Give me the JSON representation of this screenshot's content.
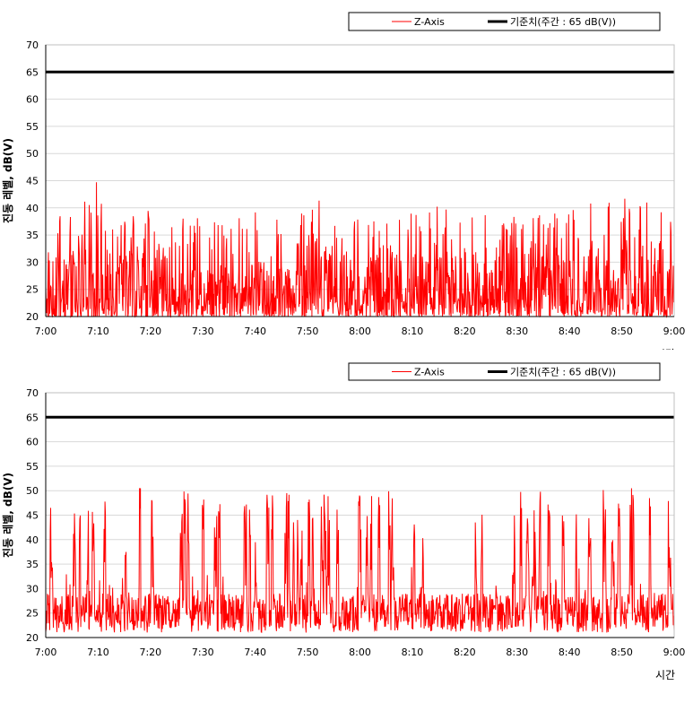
{
  "colors": {
    "series": "#ff0000",
    "threshold": "#000000",
    "grid": "#d9d9d9",
    "axis": "#000000"
  },
  "chart_data": [
    {
      "type": "line",
      "xlabel": "시간",
      "ylabel": "진동 레벨, dB(V)",
      "ylim": [
        20,
        70
      ],
      "yticks": [
        20,
        25,
        30,
        35,
        40,
        45,
        50,
        55,
        60,
        65,
        70
      ],
      "xticks": [
        "7:00",
        "7:10",
        "7:20",
        "7:30",
        "7:40",
        "7:50",
        "8:00",
        "8:10",
        "8:20",
        "8:30",
        "8:40",
        "8:50",
        "9:00"
      ],
      "grid": true,
      "legend_position": "top-right",
      "series": [
        {
          "name": "Z-Axis",
          "color": "#ff0000",
          "x": [
            "7:00",
            "7:05",
            "7:10",
            "7:15",
            "7:20",
            "7:25",
            "7:30",
            "7:35",
            "7:40",
            "7:45",
            "7:50",
            "7:55",
            "8:00",
            "8:05",
            "8:10",
            "8:15",
            "8:20",
            "8:25",
            "8:30",
            "8:35",
            "8:40",
            "8:45",
            "8:50",
            "8:55",
            "9:00"
          ],
          "y": [
            37,
            41,
            45,
            38,
            40,
            39,
            39,
            37,
            40,
            39,
            45,
            42,
            38,
            39,
            39,
            41,
            40,
            39,
            40,
            39,
            39,
            44,
            42,
            41,
            42
          ]
        },
        {
          "name": "기준치(주간 : 65 dB(V))",
          "color": "#000000",
          "x": [
            "7:00",
            "9:00"
          ],
          "y": [
            65,
            65
          ]
        }
      ]
    },
    {
      "type": "line",
      "xlabel": "시간",
      "ylabel": "진동 레벨, dB(V)",
      "ylim": [
        20,
        70
      ],
      "yticks": [
        20,
        25,
        30,
        35,
        40,
        45,
        50,
        55,
        60,
        65,
        70
      ],
      "xticks": [
        "7:00",
        "7:10",
        "7:20",
        "7:30",
        "7:40",
        "7:50",
        "8:00",
        "8:10",
        "8:20",
        "8:30",
        "8:40",
        "8:50",
        "9:00"
      ],
      "grid": true,
      "legend_position": "top-right",
      "series": [
        {
          "name": "Z-Axis",
          "color": "#ff0000",
          "x": [
            "7:00",
            "7:05",
            "7:10",
            "7:15",
            "7:20",
            "7:25",
            "7:30",
            "7:35",
            "7:40",
            "7:45",
            "7:50",
            "7:55",
            "8:00",
            "8:05",
            "8:10",
            "8:15",
            "8:20",
            "8:25",
            "8:30",
            "8:35",
            "8:40",
            "8:45",
            "8:50",
            "8:55",
            "9:00"
          ],
          "y": [
            50,
            49,
            48,
            50,
            51,
            50,
            50,
            50,
            49,
            50,
            50,
            50,
            50,
            50,
            50,
            50,
            49,
            49,
            50,
            50,
            49,
            50,
            51,
            50,
            48
          ]
        },
        {
          "name": "기준치(주간 : 65 dB(V))",
          "color": "#000000",
          "x": [
            "7:00",
            "9:00"
          ],
          "y": [
            65,
            65
          ]
        }
      ]
    }
  ]
}
